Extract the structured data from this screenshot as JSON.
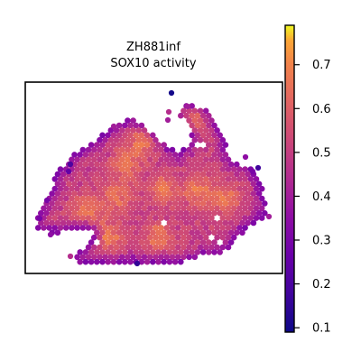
{
  "chart_data": {
    "type": "heatmap",
    "title": "ZH881inf",
    "subtitle": "SOX10 activity",
    "xlabel": "",
    "ylabel": "",
    "grid": false,
    "legend": "colorbar-right",
    "colormap": "plasma",
    "colorbar": {
      "range": [
        0.09,
        0.79
      ],
      "ticks": [
        0.1,
        0.2,
        0.3,
        0.4,
        0.5,
        0.6,
        0.7
      ],
      "tick_labels": [
        "0.1",
        "0.2",
        "0.3",
        "0.4",
        "0.5",
        "0.6",
        "0.7"
      ]
    },
    "spots": {
      "value_range": [
        0.1,
        0.78
      ],
      "shape": "hexagonal-spot-grid"
    }
  }
}
